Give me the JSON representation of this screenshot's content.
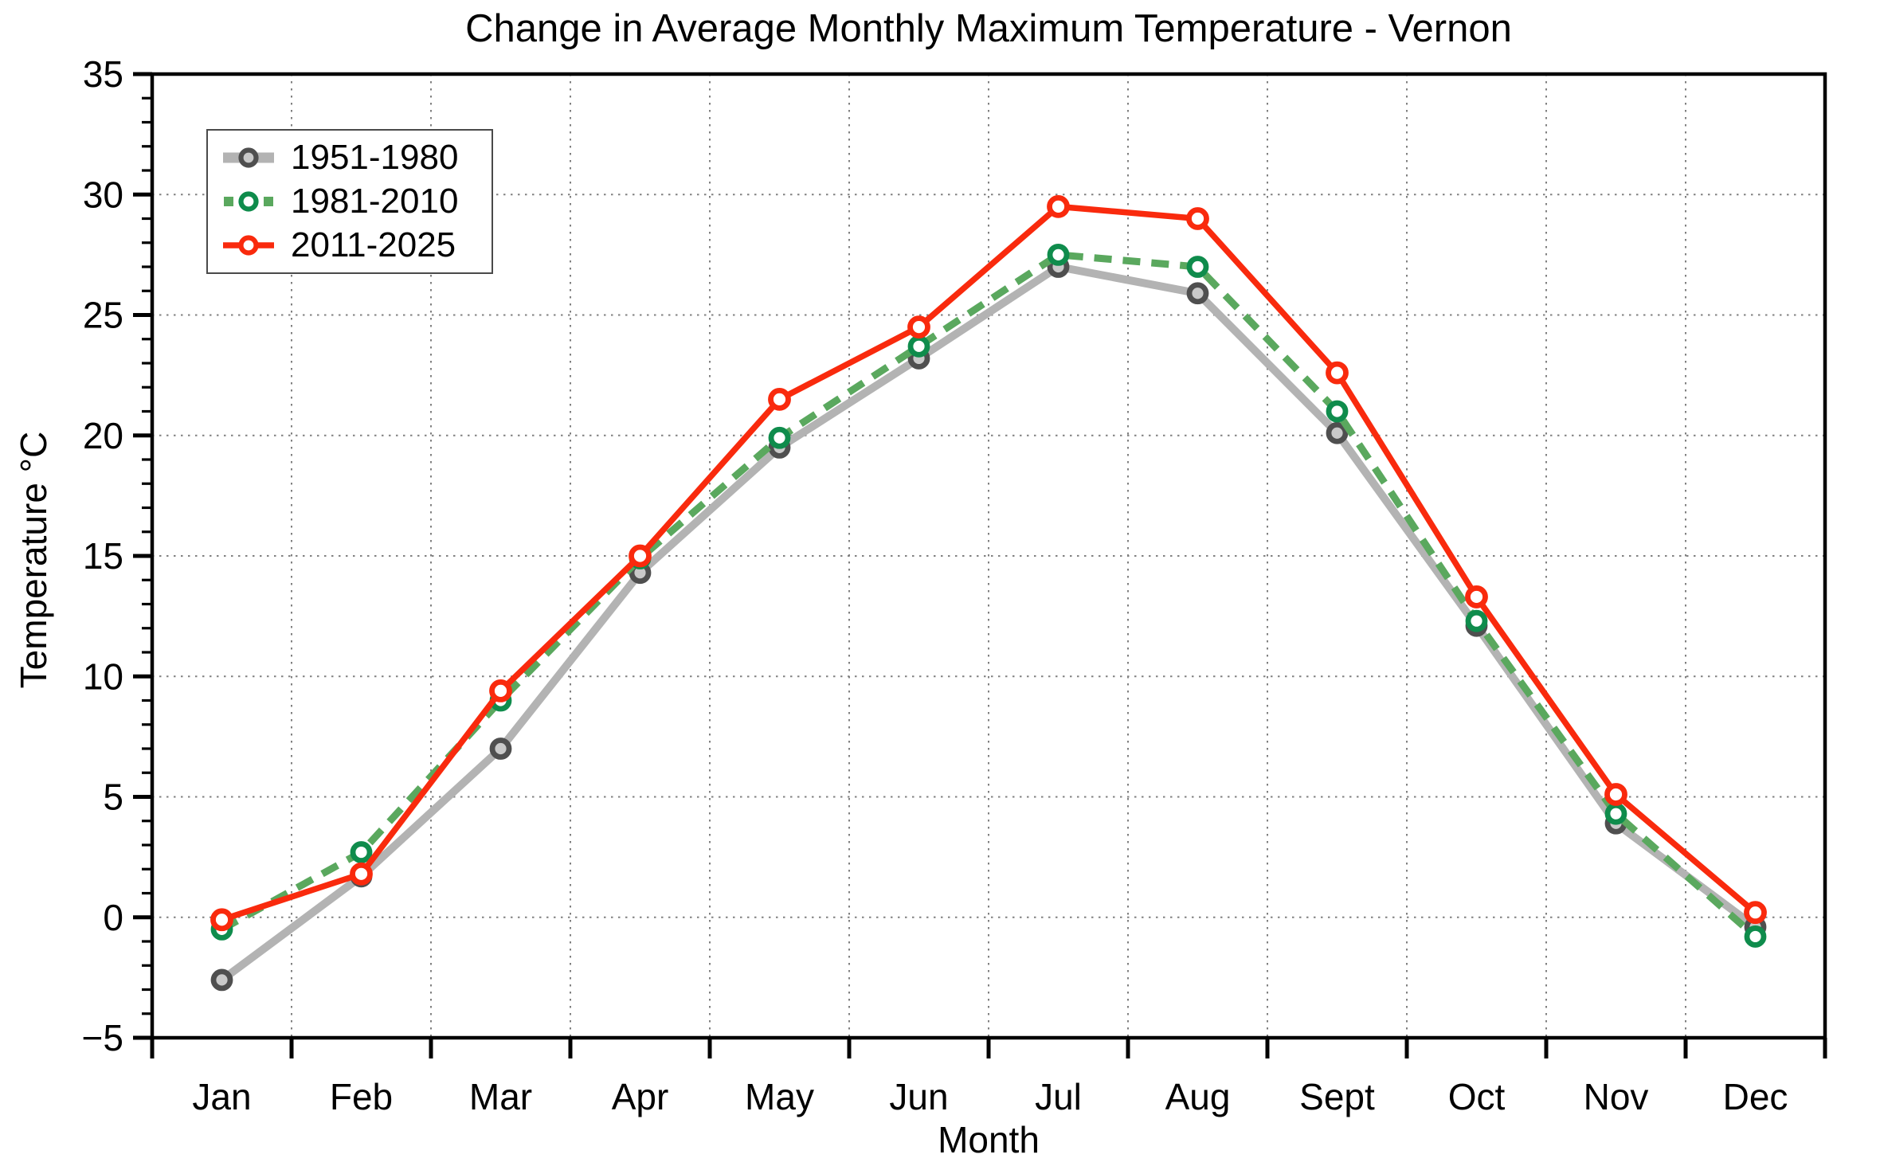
{
  "page": {
    "title": "Change in Average Monthly Maximum Temperature - Vernon"
  },
  "chart_data": {
    "type": "line",
    "title": "Change in Average Monthly Maximum Temperature - Vernon",
    "xlabel": "Month",
    "ylabel": "Temperature °C",
    "ylim": [
      -5,
      35
    ],
    "ytick_step": 5,
    "ytick_labels": [
      "−5",
      "0",
      "5",
      "10",
      "15",
      "20",
      "25",
      "30",
      "35"
    ],
    "grid": "dotted gridlines at 5°C intervals and month boundaries",
    "legend_position": "upper left",
    "categories": [
      "Jan",
      "Feb",
      "Mar",
      "Apr",
      "May",
      "Jun",
      "Jul",
      "Aug",
      "Sept",
      "Oct",
      "Nov",
      "Dec"
    ],
    "series": [
      {
        "name": "1951-1980",
        "color": "#b3b3b3",
        "marker_edge": "#4f4f4f",
        "marker_fill": "#c9c9c9",
        "line_style": "solid",
        "line_width": 10,
        "values": [
          -2.6,
          1.7,
          7.0,
          14.3,
          19.5,
          23.2,
          27.0,
          25.9,
          20.1,
          12.1,
          3.9,
          -0.4
        ]
      },
      {
        "name": "1981-2010",
        "color": "#5aa85e",
        "marker_edge": "#0f8c4c",
        "marker_fill": "#ffffff",
        "line_style": "dashed",
        "line_width": 9,
        "values": [
          -0.5,
          2.7,
          9.0,
          14.9,
          19.9,
          23.7,
          27.5,
          27.0,
          21.0,
          12.3,
          4.3,
          -0.8
        ]
      },
      {
        "name": "2011-2025",
        "color": "#f92a0d",
        "marker_edge": "#f92a0d",
        "marker_fill": "#ffffff",
        "line_style": "solid",
        "line_width": 7.5,
        "values": [
          -0.1,
          1.8,
          9.4,
          15.0,
          21.5,
          24.5,
          29.5,
          29.0,
          22.6,
          13.3,
          5.1,
          0.2
        ]
      }
    ]
  }
}
